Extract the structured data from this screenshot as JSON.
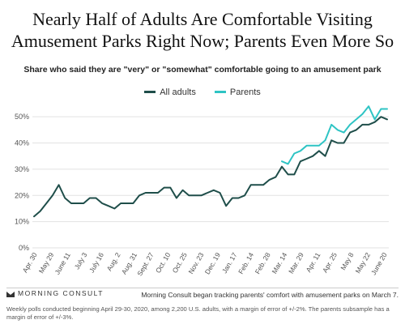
{
  "title_line1": "Nearly Half of Adults Are Comfortable Visiting",
  "title_line2": "Amusement Parks Right Now; Parents Even More So",
  "subtitle": "Share who said they are \"very\" or \"somewhat\" comfortable going to an amusement park",
  "brand": "MORNING CONSULT",
  "note": "Morning Consult began tracking parents' comfort with amusement parks on March 7.",
  "methodology": "Weekly polls conducted beginning April 29-30, 2020, among 2,200 U.S. adults, with a margin of error of +/-2%. The parents subsample has a margin of error of +/-3%.",
  "chart_data": {
    "type": "line",
    "y_ticks": [
      "0%",
      "10%",
      "20%",
      "30%",
      "40%",
      "50%"
    ],
    "ylim": [
      0,
      55
    ],
    "x_tick_labels": [
      "Apr. 30",
      "May 29",
      "June 11",
      "July 3",
      "July 16",
      "Aug. 2",
      "Aug. 31",
      "Sept. 27",
      "Oct. 10",
      "Oct. 25",
      "Nov. 23",
      "Dec. 19",
      "Jan. 17",
      "Feb. 14",
      "Feb. 28",
      "Mar. 14",
      "Mar. 29",
      "Apr. 11",
      "Apr. 25",
      "May 8",
      "May 22",
      "June 20"
    ],
    "grid": true,
    "legend_position": "top-center",
    "series": [
      {
        "name": "All adults",
        "color": "#1f4e4a",
        "values": [
          12,
          14,
          17,
          20,
          24,
          19,
          17,
          17,
          17,
          19,
          19,
          17,
          16,
          15,
          17,
          17,
          17,
          20,
          21,
          21,
          21,
          23,
          23,
          19,
          22,
          20,
          20,
          20,
          21,
          22,
          21,
          16,
          19,
          19,
          20,
          24,
          24,
          24,
          26,
          27,
          31,
          28,
          28,
          33,
          34,
          35,
          37,
          35,
          41,
          40,
          40,
          44,
          45,
          47,
          47,
          48,
          50,
          49
        ],
        "start_index": 0
      },
      {
        "name": "Parents",
        "color": "#2ec4c4",
        "values": [
          33,
          32,
          36,
          37,
          39,
          39,
          39,
          41,
          47,
          45,
          44,
          47,
          49,
          51,
          54,
          49,
          53,
          53
        ],
        "start_index": 40
      }
    ]
  }
}
